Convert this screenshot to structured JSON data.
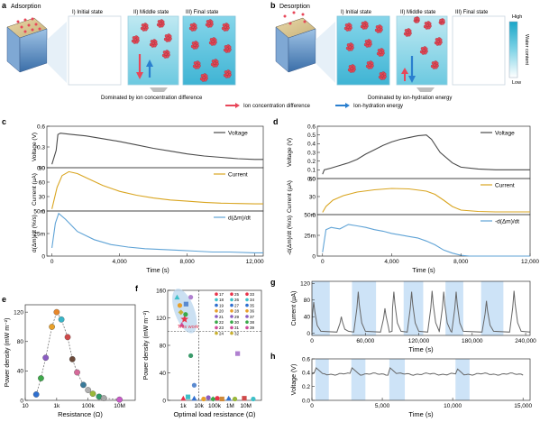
{
  "panels": {
    "a": {
      "letter": "a",
      "title": "Adsorption",
      "states": [
        "I) Initial state",
        "II) Middle state",
        "III) Final state"
      ],
      "caption": "Dominated by ion concentration difference"
    },
    "b": {
      "letter": "b",
      "title": "Desorption",
      "states": [
        "I) Initial state",
        "II) Middle state",
        "III) Final state"
      ],
      "caption": "Dominated by ion-hydration energy",
      "colorbar": {
        "title": "Water content",
        "high": "High",
        "low": "Low",
        "colors": [
          "#ffffff",
          "#7fd3e6",
          "#1aa6c8"
        ]
      }
    },
    "legend_ab": {
      "red_label": "Ion concentration difference",
      "blue_label": "Ion-hydration energy",
      "red": "#e8475a",
      "blue": "#2a7fcf"
    },
    "c": {
      "letter": "c",
      "xlabel": "Time (s)",
      "xticks": [
        "0",
        "4,000",
        "8,000",
        "12,000"
      ]
    },
    "d": {
      "letter": "d",
      "xlabel": "Time (s)",
      "xticks": [
        "0",
        "4,000",
        "8,000",
        "12,000"
      ]
    },
    "e": {
      "letter": "e"
    },
    "f": {
      "letter": "f",
      "marker": "This work"
    },
    "g": {
      "letter": "g"
    },
    "h": {
      "letter": "h"
    }
  },
  "chart_data": [
    {
      "id": "c-voltage",
      "type": "line",
      "ylabel": "Voltage (V)",
      "yticks": [
        "0.0",
        "0.3",
        "0.6"
      ],
      "ylim": [
        0,
        0.6
      ],
      "xlim": [
        -300,
        12500
      ],
      "series": [
        {
          "name": "Voltage",
          "color": "#4a4a4a",
          "x": [
            0,
            250,
            350,
            500,
            1200,
            2000,
            3000,
            4000,
            5000,
            6000,
            7000,
            8000,
            9000,
            10000,
            11000,
            12000,
            12500
          ],
          "values": [
            0.05,
            0.25,
            0.48,
            0.5,
            0.48,
            0.46,
            0.42,
            0.38,
            0.33,
            0.28,
            0.24,
            0.2,
            0.17,
            0.15,
            0.13,
            0.12,
            0.12
          ]
        }
      ]
    },
    {
      "id": "c-current",
      "type": "line",
      "ylabel": "Current (µA)",
      "yticks": [
        "0",
        "30",
        "60",
        "90"
      ],
      "ylim": [
        0,
        110
      ],
      "xlim": [
        -300,
        12500
      ],
      "series": [
        {
          "name": "Current",
          "color": "#d9a520",
          "x": [
            0,
            300,
            600,
            1000,
            1500,
            2000,
            3000,
            4000,
            5000,
            6000,
            7000,
            8000,
            9000,
            10000,
            11000,
            12000,
            12500
          ],
          "values": [
            5,
            60,
            90,
            100,
            95,
            85,
            65,
            50,
            40,
            33,
            28,
            25,
            22,
            20,
            19,
            18,
            18
          ]
        }
      ]
    },
    {
      "id": "c-dm",
      "type": "line",
      "ylabel": "d(Δm)/dt (%/s)",
      "yticks": [
        "0",
        "25m",
        "50m"
      ],
      "ylim": [
        0,
        0.055
      ],
      "xlim": [
        -300,
        12500
      ],
      "series": [
        {
          "name": "d(Δm)/dt",
          "color": "#5fa3d6",
          "x": [
            0,
            200,
            400,
            800,
            1500,
            2500,
            3500,
            4500,
            5500,
            6500,
            7500,
            8500,
            9500,
            10500,
            12000,
            12500
          ],
          "values": [
            0.01,
            0.04,
            0.052,
            0.045,
            0.03,
            0.02,
            0.014,
            0.011,
            0.009,
            0.008,
            0.007,
            0.006,
            0.005,
            0.005,
            0.004,
            0.004
          ]
        }
      ]
    },
    {
      "id": "d-voltage",
      "type": "line",
      "ylabel": "Voltage (V)",
      "yticks": [
        "0.0",
        "0.1",
        "0.2",
        "0.3",
        "0.4",
        "0.5",
        "0.6"
      ],
      "ylim": [
        0,
        0.6
      ],
      "xlim": [
        -300,
        12000
      ],
      "series": [
        {
          "name": "Voltage",
          "color": "#4a4a4a",
          "x": [
            0,
            100,
            500,
            1000,
            1500,
            2000,
            2500,
            3000,
            3500,
            4000,
            4500,
            5000,
            5500,
            6000,
            6300,
            6800,
            7500,
            8000,
            9000,
            10000,
            11000,
            12000
          ],
          "values": [
            0.05,
            0.1,
            0.12,
            0.15,
            0.18,
            0.22,
            0.28,
            0.33,
            0.38,
            0.42,
            0.45,
            0.47,
            0.49,
            0.5,
            0.45,
            0.3,
            0.18,
            0.13,
            0.11,
            0.1,
            0.1,
            0.1
          ]
        }
      ]
    },
    {
      "id": "d-current",
      "type": "line",
      "ylabel": "Current (µA)",
      "yticks": [
        "0",
        "30",
        "60"
      ],
      "ylim": [
        0,
        80
      ],
      "xlim": [
        -300,
        12000
      ],
      "series": [
        {
          "name": "Current",
          "color": "#d9a520",
          "x": [
            0,
            200,
            600,
            1200,
            2000,
            3000,
            4000,
            5000,
            6000,
            6500,
            7000,
            7500,
            8000,
            9000,
            10000,
            11000,
            12000
          ],
          "values": [
            5,
            18,
            32,
            42,
            50,
            55,
            58,
            57,
            52,
            45,
            32,
            18,
            10,
            7,
            6,
            6,
            6
          ]
        }
      ]
    },
    {
      "id": "d-dm",
      "type": "line",
      "ylabel": "-d(Δm)/dt (%/s)",
      "yticks": [
        "0",
        "25m",
        "50m"
      ],
      "ylim": [
        0,
        0.055
      ],
      "xlim": [
        -300,
        12000
      ],
      "series": [
        {
          "name": "-d(Δm)/dt",
          "color": "#5fa3d6",
          "x": [
            0,
            200,
            500,
            1000,
            1500,
            2000,
            2500,
            3000,
            3500,
            4000,
            4500,
            5000,
            5500,
            6000,
            6500,
            7000,
            7500,
            8000,
            8500,
            9000,
            12000
          ],
          "values": [
            0.005,
            0.035,
            0.038,
            0.036,
            0.042,
            0.04,
            0.038,
            0.035,
            0.033,
            0.03,
            0.028,
            0.026,
            0.024,
            0.02,
            0.015,
            0.008,
            0.004,
            0.001,
            0,
            0,
            0
          ]
        }
      ]
    },
    {
      "id": "e",
      "type": "scatter",
      "xlabel": "Resistance (Ω)",
      "ylabel": "Power density (mW m⁻²)",
      "xlog": true,
      "xlim": [
        10,
        100000000.0
      ],
      "ylim": [
        0,
        130
      ],
      "xticks": [
        {
          "v": 10,
          "t": "10"
        },
        {
          "v": 1000,
          "t": "1k"
        },
        {
          "v": 100000,
          "t": "100k"
        },
        {
          "v": 10000000,
          "t": "10M"
        }
      ],
      "yticks": [
        {
          "v": 0,
          "t": "0"
        },
        {
          "v": 40,
          "t": "40"
        },
        {
          "v": 80,
          "t": "80"
        },
        {
          "v": 120,
          "t": "120"
        }
      ],
      "series": [
        {
          "name": "",
          "style": "dashed-fit",
          "color": "#888",
          "points": [
            {
              "x": 50,
              "y": 8,
              "c": "#2f6fcf"
            },
            {
              "x": 100,
              "y": 30,
              "c": "#3ea84a"
            },
            {
              "x": 200,
              "y": 58,
              "c": "#8a5cc2"
            },
            {
              "x": 500,
              "y": 100,
              "c": "#e8a02a"
            },
            {
              "x": 1000,
              "y": 120,
              "c": "#e8872a"
            },
            {
              "x": 2000,
              "y": 110,
              "c": "#39b6c8"
            },
            {
              "x": 5000,
              "y": 86,
              "c": "#cf4a4a"
            },
            {
              "x": 10000,
              "y": 56,
              "c": "#6b4a3a"
            },
            {
              "x": 20000,
              "y": 38,
              "c": "#d66a9a"
            },
            {
              "x": 50000,
              "y": 21,
              "c": "#3a7a9a"
            },
            {
              "x": 100000,
              "y": 14,
              "c": "#b0b0b0"
            },
            {
              "x": 200000,
              "y": 9,
              "c": "#9ab83a"
            },
            {
              "x": 500000,
              "y": 5,
              "c": "#2f9a6a"
            },
            {
              "x": 1000000,
              "y": 3,
              "c": "#a8a8a8"
            },
            {
              "x": 10000000,
              "y": 1,
              "c": "#c85ac8"
            }
          ]
        }
      ]
    },
    {
      "id": "f",
      "type": "scatter",
      "xlabel": "Optimal load resistance (Ω)",
      "ylabel": "Power density (mW m⁻²)",
      "xlog": true,
      "xlim": [
        100,
        100000000.0
      ],
      "ylim": [
        0,
        160
      ],
      "xticks": [
        {
          "v": 1000,
          "t": "1k"
        },
        {
          "v": 10000,
          "t": "10k"
        },
        {
          "v": 100000,
          "t": "100k"
        },
        {
          "v": 1000000,
          "t": "1M"
        },
        {
          "v": 10000000,
          "t": "10M"
        }
      ],
      "yticks": [
        {
          "v": 0,
          "t": "0"
        },
        {
          "v": 40,
          "t": "40"
        },
        {
          "v": 80,
          "t": "80"
        },
        {
          "v": 120,
          "t": "120"
        },
        {
          "v": 160,
          "t": "160"
        }
      ],
      "reference": {
        "x": 10000,
        "y": 100
      },
      "legend_numbers": [
        "17",
        "18",
        "19",
        "20",
        "21",
        "22",
        "23",
        "24",
        "25",
        "26",
        "27",
        "28",
        "29",
        "30",
        "31",
        "32",
        "33",
        "34",
        "35",
        "36",
        "37",
        "38",
        "39"
      ],
      "series": [
        {
          "name": "",
          "points": [
            {
              "x": 1200,
              "y": 118,
              "c": "#e8334a",
              "m": "star"
            },
            {
              "x": 400,
              "y": 150,
              "c": "#3ec0c8",
              "m": "triangle"
            },
            {
              "x": 3000,
              "y": 150,
              "c": "#b080d0",
              "m": "circle"
            },
            {
              "x": 600,
              "y": 138,
              "c": "#e8a02a",
              "m": "circle"
            },
            {
              "x": 1500,
              "y": 140,
              "c": "#5a8ad0",
              "m": "square"
            },
            {
              "x": 700,
              "y": 128,
              "c": "#c8b030",
              "m": "diamond"
            },
            {
              "x": 1400,
              "y": 125,
              "c": "#3aa84a",
              "m": "circle"
            },
            {
              "x": 800,
              "y": 110,
              "c": "#cf4a9a",
              "m": "triangle"
            },
            {
              "x": 3000,
              "y": 65,
              "c": "#3a9a6a",
              "m": "circle"
            },
            {
              "x": 5000,
              "y": 22,
              "c": "#5a8ad0",
              "m": "circle"
            },
            {
              "x": 3000000,
              "y": 68,
              "c": "#b080d0",
              "m": "square"
            },
            {
              "x": 1000,
              "y": 3,
              "c": "#e8334a",
              "m": "triangle"
            },
            {
              "x": 2000,
              "y": 5,
              "c": "#3ec0c8",
              "m": "square"
            },
            {
              "x": 5000,
              "y": 3,
              "c": "#2f6fcf",
              "m": "triangle"
            },
            {
              "x": 20000,
              "y": 2,
              "c": "#e8a02a",
              "m": "circle"
            },
            {
              "x": 40000,
              "y": 4,
              "c": "#8a5cc2",
              "m": "circle"
            },
            {
              "x": 80000,
              "y": 2,
              "c": "#3aa84a",
              "m": "diamond"
            },
            {
              "x": 150000,
              "y": 3,
              "c": "#e8334a",
              "m": "circle"
            },
            {
              "x": 300000,
              "y": 2,
              "c": "#cf8a3a",
              "m": "square"
            },
            {
              "x": 800000,
              "y": 3,
              "c": "#2f6fcf",
              "m": "triangle"
            },
            {
              "x": 2000000,
              "y": 2,
              "c": "#9ab83a",
              "m": "circle"
            },
            {
              "x": 8000000,
              "y": 3,
              "c": "#cf4a4a",
              "m": "square"
            },
            {
              "x": 30000000,
              "y": 2,
              "c": "#3ec0c8",
              "m": "circle"
            }
          ]
        }
      ]
    },
    {
      "id": "g",
      "type": "line",
      "xlabel": "Time (s)",
      "ylabel": "Current (µA)",
      "xlim": [
        0,
        245000
      ],
      "ylim": [
        -5,
        125
      ],
      "xticks": [
        {
          "v": 0,
          "t": "0"
        },
        {
          "v": 60000,
          "t": "60,000"
        },
        {
          "v": 120000,
          "t": "120,000"
        },
        {
          "v": 180000,
          "t": "180,000"
        },
        {
          "v": 240000,
          "t": "240,000"
        }
      ],
      "yticks": [
        {
          "v": 0,
          "t": "0"
        },
        {
          "v": 40,
          "t": "40"
        },
        {
          "v": 80,
          "t": "80"
        },
        {
          "v": 120,
          "t": "120"
        }
      ],
      "bands": [
        [
          0,
          20000
        ],
        [
          45000,
          72000
        ],
        [
          103000,
          125000
        ],
        [
          150000,
          170000
        ],
        [
          190000,
          215000
        ]
      ],
      "peaks": [
        {
          "t": 2000,
          "h": 75
        },
        {
          "t": 33000,
          "h": 40
        },
        {
          "t": 52000,
          "h": 100
        },
        {
          "t": 82000,
          "h": 60
        },
        {
          "t": 92000,
          "h": 100
        },
        {
          "t": 112000,
          "h": 100
        },
        {
          "t": 135000,
          "h": 102
        },
        {
          "t": 148000,
          "h": 100
        },
        {
          "t": 162000,
          "h": 100
        },
        {
          "t": 196000,
          "h": 78
        },
        {
          "t": 227000,
          "h": 102
        }
      ],
      "series": [
        {
          "name": "",
          "color": "#666666"
        }
      ]
    },
    {
      "id": "h",
      "type": "line",
      "xlabel": "Time (s)",
      "ylabel": "Voltage (V)",
      "xlim": [
        0,
        15500
      ],
      "ylim": [
        0,
        0.6
      ],
      "xticks": [
        {
          "v": 0,
          "t": "0"
        },
        {
          "v": 5000,
          "t": "5,000"
        },
        {
          "v": 10000,
          "t": "10,000"
        },
        {
          "v": 15000,
          "t": "15,000"
        }
      ],
      "yticks": [
        {
          "v": 0,
          "t": "0.0"
        },
        {
          "v": 0.2,
          "t": "0.2"
        },
        {
          "v": 0.4,
          "t": "0.4"
        },
        {
          "v": 0.6,
          "t": "0.6"
        }
      ],
      "bands": [
        [
          250,
          1200
        ],
        [
          2800,
          3800
        ],
        [
          5500,
          6600
        ],
        [
          10200,
          11200
        ]
      ],
      "series": [
        {
          "name": "",
          "color": "#666666",
          "baseline": 0.38,
          "spike": 0.47,
          "spikes": [
            300,
            2850,
            5550,
            10250
          ]
        }
      ]
    }
  ]
}
